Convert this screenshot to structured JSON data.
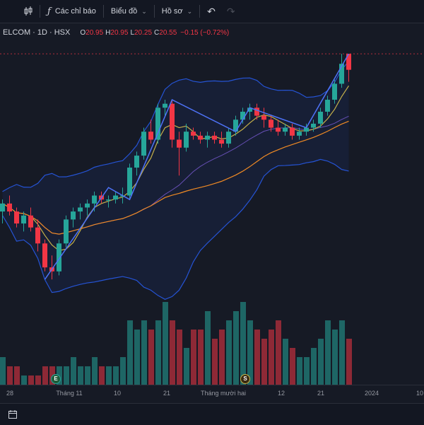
{
  "toolbar": {
    "indicators_label": "Các chỉ báo",
    "chart_label": "Biểu đồ",
    "profile_label": "Hồ sơ"
  },
  "legend": {
    "symbol": "ELCOM · 1D · HSX",
    "open_key": "O",
    "open": "20.95",
    "high_key": "H",
    "high": "20.95",
    "low_key": "L",
    "low": "20.25",
    "close_key": "C",
    "close": "20.55",
    "change": "−0.15 (−0.72%)"
  },
  "x_axis_labels": [
    "28",
    "Tháng 11",
    "10",
    "21",
    "Tháng mười hai",
    "12",
    "21",
    "2024",
    "10"
  ],
  "event_markers": [
    "E",
    "S"
  ],
  "colors": {
    "up": "#26a69a",
    "down": "#f23645",
    "bollinger": "#2962ff",
    "ma_short": "#c6b14a",
    "ma_long": "#f08a24",
    "zigzag": "#4e73f8",
    "background": "#161a25"
  },
  "chart_data": {
    "type": "candlestick",
    "series": [
      {
        "name": "price",
        "ohlc": [
          [
            17.0,
            17.3,
            16.7,
            17.2
          ],
          [
            17.2,
            17.4,
            16.9,
            17.0
          ],
          [
            17.0,
            17.1,
            16.6,
            16.7
          ],
          [
            16.7,
            17.0,
            16.5,
            16.9
          ],
          [
            16.9,
            17.1,
            16.5,
            16.6
          ],
          [
            16.6,
            16.8,
            16.0,
            16.2
          ],
          [
            16.2,
            16.3,
            15.5,
            15.6
          ],
          [
            15.6,
            15.9,
            15.3,
            15.5
          ],
          [
            15.5,
            16.3,
            15.4,
            16.2
          ],
          [
            16.2,
            16.9,
            16.1,
            16.8
          ],
          [
            16.8,
            17.1,
            16.6,
            17.0
          ],
          [
            17.0,
            17.2,
            16.8,
            17.1
          ],
          [
            17.1,
            17.3,
            16.9,
            17.2
          ],
          [
            17.2,
            17.5,
            17.0,
            17.4
          ],
          [
            17.4,
            17.5,
            17.2,
            17.3
          ],
          [
            17.3,
            17.4,
            17.1,
            17.3
          ],
          [
            17.3,
            17.5,
            17.2,
            17.4
          ],
          [
            17.4,
            17.6,
            17.2,
            17.4
          ],
          [
            17.4,
            18.2,
            17.3,
            18.1
          ],
          [
            18.1,
            18.5,
            17.9,
            18.4
          ],
          [
            18.4,
            19.1,
            18.3,
            19.0
          ],
          [
            19.0,
            19.3,
            18.7,
            18.8
          ],
          [
            18.8,
            19.7,
            18.7,
            19.6
          ],
          [
            19.6,
            19.8,
            19.4,
            19.7
          ],
          [
            19.7,
            19.8,
            18.6,
            18.8
          ],
          [
            18.8,
            19.0,
            17.9,
            18.6
          ],
          [
            18.6,
            19.2,
            18.5,
            19.0
          ],
          [
            19.0,
            19.1,
            18.8,
            18.9
          ],
          [
            18.9,
            19.0,
            18.7,
            18.8
          ],
          [
            18.8,
            19.0,
            18.6,
            18.9
          ],
          [
            18.9,
            19.0,
            18.7,
            18.8
          ],
          [
            18.8,
            19.0,
            18.6,
            18.7
          ],
          [
            18.7,
            19.1,
            18.6,
            19.0
          ],
          [
            19.0,
            19.4,
            18.9,
            19.3
          ],
          [
            19.3,
            19.6,
            19.2,
            19.5
          ],
          [
            19.5,
            19.7,
            19.3,
            19.6
          ],
          [
            19.6,
            19.7,
            19.3,
            19.4
          ],
          [
            19.4,
            19.6,
            19.1,
            19.3
          ],
          [
            19.3,
            19.4,
            19.0,
            19.1
          ],
          [
            19.1,
            19.3,
            18.9,
            19.0
          ],
          [
            19.0,
            19.2,
            18.9,
            19.1
          ],
          [
            19.1,
            19.2,
            18.8,
            18.9
          ],
          [
            18.9,
            19.1,
            18.8,
            19.0
          ],
          [
            19.0,
            19.2,
            18.9,
            19.1
          ],
          [
            19.1,
            19.3,
            19.0,
            19.2
          ],
          [
            19.2,
            19.6,
            19.1,
            19.5
          ],
          [
            19.5,
            19.9,
            19.4,
            19.8
          ],
          [
            19.8,
            20.3,
            19.7,
            20.2
          ],
          [
            20.2,
            20.95,
            20.1,
            20.7
          ],
          [
            20.95,
            20.95,
            20.25,
            20.55
          ]
        ]
      }
    ],
    "volume": [
      3,
      2,
      2,
      1,
      1,
      1,
      2,
      2,
      2,
      2,
      3,
      2,
      2,
      3,
      2,
      2,
      2,
      3,
      7,
      6,
      7,
      6,
      7,
      9,
      7,
      6,
      4,
      6,
      6,
      8,
      5,
      6,
      7,
      8,
      9,
      7,
      6,
      5,
      6,
      7,
      5,
      4,
      3,
      3,
      4,
      5,
      7,
      6,
      7,
      5
    ],
    "ylim": [
      15.0,
      21.2
    ]
  }
}
